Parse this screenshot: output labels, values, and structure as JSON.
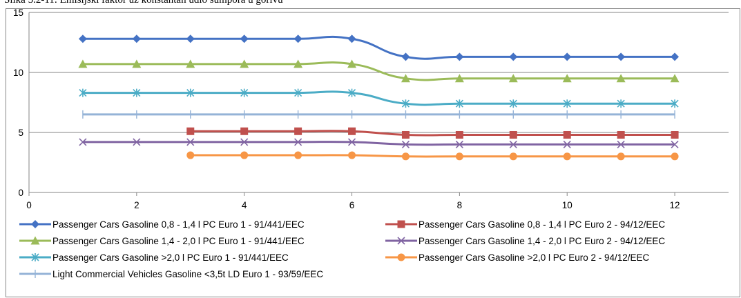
{
  "caption": "Slika 5.2-11: Emisijski faktor uz konstantan udio sumpora u gorivu",
  "chart_data": {
    "type": "line",
    "xlim": [
      0,
      13
    ],
    "ylim": [
      0,
      15
    ],
    "xticks": [
      "0",
      "2",
      "4",
      "6",
      "8",
      "10",
      "12"
    ],
    "yticks": [
      "0",
      "5",
      "10",
      "15"
    ],
    "grid": "horizontal",
    "legend_position": "bottom",
    "series": [
      {
        "name": "Passenger Cars Gasoline 0,8 - 1,4 l PC Euro 1 - 91/441/EEC",
        "color": "#4472C4",
        "marker": "diamond",
        "x": [
          1,
          2,
          3,
          4,
          5,
          6,
          7,
          8,
          9,
          10,
          11,
          12
        ],
        "y": [
          12.8,
          12.8,
          12.8,
          12.8,
          12.8,
          12.8,
          11.3,
          11.3,
          11.3,
          11.3,
          11.3,
          11.3
        ]
      },
      {
        "name": "Passenger Cars Gasoline 0,8 - 1,4 l PC Euro 2 - 94/12/EEC",
        "color": "#C0504D",
        "marker": "square",
        "x": [
          3,
          4,
          5,
          6,
          7,
          8,
          9,
          10,
          11,
          12
        ],
        "y": [
          5.1,
          5.1,
          5.1,
          5.1,
          4.8,
          4.8,
          4.8,
          4.8,
          4.8,
          4.8
        ]
      },
      {
        "name": "Passenger Cars Gasoline 1,4 - 2,0 l PC Euro 1 - 91/441/EEC",
        "color": "#9BBB59",
        "marker": "triangle",
        "x": [
          1,
          2,
          3,
          4,
          5,
          6,
          7,
          8,
          9,
          10,
          11,
          12
        ],
        "y": [
          10.7,
          10.7,
          10.7,
          10.7,
          10.7,
          10.7,
          9.5,
          9.5,
          9.5,
          9.5,
          9.5,
          9.5
        ]
      },
      {
        "name": "Passenger Cars Gasoline 1,4 - 2,0 l PC Euro 2 - 94/12/EEC",
        "color": "#8064A2",
        "marker": "x",
        "x": [
          1,
          2,
          3,
          4,
          5,
          6,
          7,
          8,
          9,
          10,
          11,
          12
        ],
        "y": [
          4.2,
          4.2,
          4.2,
          4.2,
          4.2,
          4.2,
          4.0,
          4.0,
          4.0,
          4.0,
          4.0,
          4.0
        ]
      },
      {
        "name": "Passenger Cars Gasoline >2,0 l PC Euro 1 - 91/441/EEC",
        "color": "#4BACC6",
        "marker": "star",
        "x": [
          1,
          2,
          3,
          4,
          5,
          6,
          7,
          8,
          9,
          10,
          11,
          12
        ],
        "y": [
          8.3,
          8.3,
          8.3,
          8.3,
          8.3,
          8.3,
          7.4,
          7.4,
          7.4,
          7.4,
          7.4,
          7.4
        ]
      },
      {
        "name": "Passenger Cars Gasoline >2,0 l PC Euro 2 - 94/12/EEC",
        "color": "#F79646",
        "marker": "circle",
        "x": [
          3,
          4,
          5,
          6,
          7,
          8,
          9,
          10,
          11,
          12
        ],
        "y": [
          3.1,
          3.1,
          3.1,
          3.1,
          3.0,
          3.0,
          3.0,
          3.0,
          3.0,
          3.0
        ]
      },
      {
        "name": "Light Commercial Vehicles Gasoline <3,5t LD Euro 1 - 93/59/EEC",
        "color": "#95B3D7",
        "marker": "plus",
        "x": [
          1,
          2,
          3,
          4,
          5,
          6,
          7,
          8,
          9,
          10,
          11,
          12
        ],
        "y": [
          6.5,
          6.5,
          6.5,
          6.5,
          6.5,
          6.5,
          6.5,
          6.5,
          6.5,
          6.5,
          6.5,
          6.5
        ]
      }
    ]
  }
}
